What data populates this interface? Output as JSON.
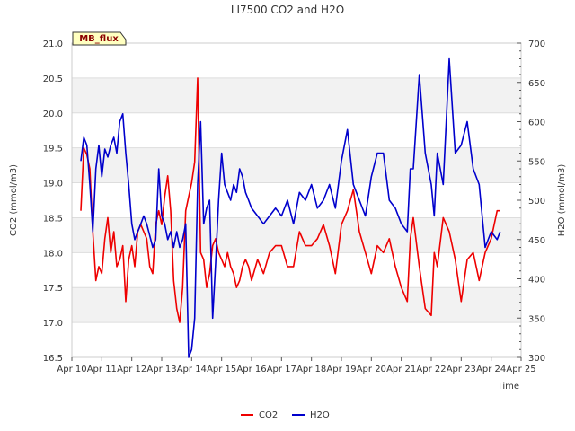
{
  "chart_data": {
    "type": "line",
    "title": "LI7500 CO2 and H2O",
    "xlabel": "Time",
    "ylabel_left": "CO2 (mmol/m3)",
    "ylabel_right": "H2O (mmol/m3)",
    "site_label": "MB_flux",
    "x_ticks": [
      "Apr 10",
      "Apr 11",
      "Apr 12",
      "Apr 13",
      "Apr 14",
      "Apr 15",
      "Apr 16",
      "Apr 17",
      "Apr 18",
      "Apr 19",
      "Apr 20",
      "Apr 21",
      "Apr 22",
      "Apr 23",
      "Apr 24",
      "Apr 25"
    ],
    "x_range": [
      10,
      25
    ],
    "y_left_ticks": [
      "16.5",
      "17.0",
      "17.5",
      "18.0",
      "18.5",
      "19.0",
      "19.5",
      "20.0",
      "20.5",
      "21.0"
    ],
    "ylim_left": [
      16.5,
      21.0
    ],
    "y_right_ticks": [
      "300",
      "350",
      "400",
      "450",
      "500",
      "550",
      "600",
      "650",
      "700"
    ],
    "ylim_right": [
      300,
      700
    ],
    "grid": true,
    "legend_position": "bottom-center",
    "series": [
      {
        "name": "CO2",
        "axis": "left",
        "color": "#ee0000",
        "x": [
          10.3,
          10.4,
          10.5,
          10.6,
          10.7,
          10.8,
          10.9,
          11.0,
          11.1,
          11.2,
          11.3,
          11.4,
          11.5,
          11.6,
          11.7,
          11.8,
          11.9,
          12.0,
          12.1,
          12.2,
          12.3,
          12.4,
          12.5,
          12.6,
          12.7,
          12.8,
          12.9,
          13.0,
          13.1,
          13.2,
          13.3,
          13.4,
          13.5,
          13.6,
          13.7,
          13.8,
          13.9,
          14.0,
          14.1,
          14.2,
          14.3,
          14.4,
          14.5,
          14.6,
          14.7,
          14.8,
          14.9,
          15.0,
          15.1,
          15.2,
          15.3,
          15.4,
          15.5,
          15.6,
          15.7,
          15.8,
          15.9,
          16.0,
          16.2,
          16.4,
          16.6,
          16.8,
          17.0,
          17.2,
          17.4,
          17.6,
          17.8,
          18.0,
          18.2,
          18.4,
          18.6,
          18.8,
          19.0,
          19.2,
          19.4,
          19.6,
          19.8,
          20.0,
          20.2,
          20.4,
          20.6,
          20.8,
          21.0,
          21.2,
          21.3,
          21.4,
          21.6,
          21.8,
          22.0,
          22.1,
          22.2,
          22.4,
          22.6,
          22.8,
          23.0,
          23.2,
          23.4,
          23.6,
          23.8,
          24.0,
          24.2,
          24.3
        ],
        "y": [
          18.6,
          19.5,
          19.4,
          19.2,
          18.3,
          17.6,
          17.8,
          17.7,
          18.2,
          18.5,
          18.0,
          18.3,
          17.8,
          17.9,
          18.1,
          17.3,
          17.9,
          18.1,
          17.8,
          18.3,
          18.4,
          18.3,
          18.2,
          17.8,
          17.7,
          18.4,
          18.6,
          18.4,
          18.8,
          19.1,
          18.6,
          17.6,
          17.2,
          17.0,
          17.5,
          18.6,
          18.8,
          19.0,
          19.3,
          20.5,
          18.0,
          17.9,
          17.5,
          17.7,
          18.1,
          18.2,
          18.0,
          17.9,
          17.8,
          18.0,
          17.8,
          17.7,
          17.5,
          17.6,
          17.8,
          17.9,
          17.8,
          17.6,
          17.9,
          17.7,
          18.0,
          18.1,
          18.1,
          17.8,
          17.8,
          18.3,
          18.1,
          18.1,
          18.2,
          18.4,
          18.1,
          17.7,
          18.4,
          18.6,
          18.9,
          18.3,
          18.0,
          17.7,
          18.1,
          18.0,
          18.2,
          17.8,
          17.5,
          17.3,
          18.2,
          18.5,
          17.8,
          17.2,
          17.1,
          18.0,
          17.8,
          18.5,
          18.3,
          17.9,
          17.3,
          17.9,
          18.0,
          17.6,
          18.0,
          18.2,
          18.6,
          18.6
        ]
      },
      {
        "name": "H2O",
        "axis": "right",
        "color": "#0000cc",
        "x": [
          10.3,
          10.4,
          10.5,
          10.6,
          10.7,
          10.8,
          10.9,
          11.0,
          11.1,
          11.2,
          11.3,
          11.4,
          11.5,
          11.6,
          11.7,
          11.8,
          11.9,
          12.0,
          12.1,
          12.2,
          12.3,
          12.4,
          12.5,
          12.6,
          12.7,
          12.8,
          12.9,
          13.0,
          13.1,
          13.2,
          13.3,
          13.4,
          13.5,
          13.6,
          13.7,
          13.8,
          13.9,
          14.0,
          14.1,
          14.2,
          14.3,
          14.4,
          14.5,
          14.6,
          14.7,
          14.8,
          14.9,
          15.0,
          15.1,
          15.2,
          15.3,
          15.4,
          15.5,
          15.6,
          15.7,
          15.8,
          15.9,
          16.0,
          16.2,
          16.4,
          16.6,
          16.8,
          17.0,
          17.2,
          17.4,
          17.6,
          17.8,
          18.0,
          18.2,
          18.4,
          18.6,
          18.8,
          19.0,
          19.2,
          19.4,
          19.6,
          19.8,
          20.0,
          20.2,
          20.4,
          20.6,
          20.8,
          21.0,
          21.2,
          21.3,
          21.4,
          21.6,
          21.8,
          22.0,
          22.1,
          22.2,
          22.4,
          22.6,
          22.8,
          23.0,
          23.2,
          23.4,
          23.6,
          23.8,
          24.0,
          24.2,
          24.3
        ],
        "y": [
          550,
          580,
          570,
          520,
          460,
          540,
          570,
          530,
          565,
          555,
          570,
          580,
          560,
          600,
          610,
          560,
          520,
          470,
          450,
          460,
          470,
          480,
          470,
          455,
          440,
          450,
          540,
          480,
          470,
          450,
          460,
          440,
          460,
          440,
          450,
          470,
          300,
          310,
          350,
          520,
          600,
          470,
          490,
          500,
          350,
          420,
          500,
          560,
          520,
          510,
          500,
          520,
          510,
          540,
          530,
          510,
          500,
          490,
          480,
          470,
          480,
          490,
          480,
          500,
          470,
          510,
          500,
          520,
          490,
          500,
          520,
          490,
          550,
          590,
          520,
          500,
          480,
          530,
          560,
          560,
          500,
          490,
          470,
          460,
          540,
          540,
          660,
          560,
          520,
          480,
          560,
          520,
          680,
          560,
          570,
          600,
          540,
          520,
          440,
          460,
          450,
          460
        ]
      }
    ]
  }
}
